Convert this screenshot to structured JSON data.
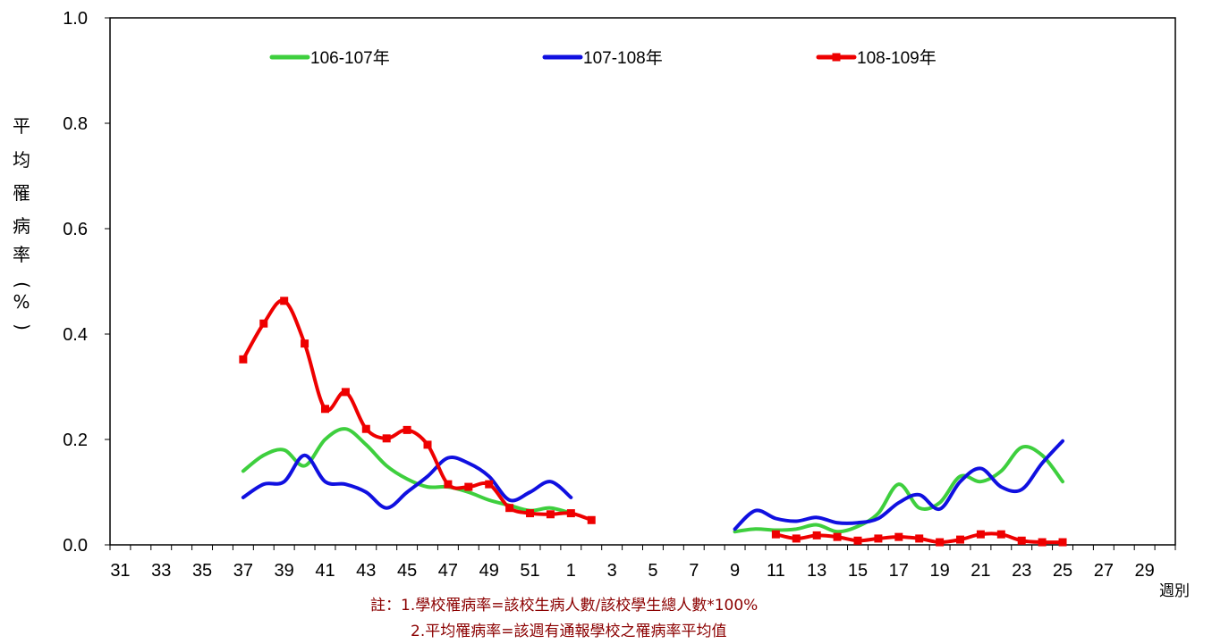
{
  "chart_data": {
    "type": "line",
    "title": "",
    "ylabel": "平均罹病率(%)",
    "xlabel": "週別",
    "ylim": [
      0,
      1.0
    ],
    "yticks": [
      "0.0",
      "0.2",
      "0.4",
      "0.6",
      "0.8",
      "1.0"
    ],
    "x_weeks": [
      31,
      32,
      33,
      34,
      35,
      36,
      37,
      38,
      39,
      40,
      41,
      42,
      43,
      44,
      45,
      46,
      47,
      48,
      49,
      50,
      51,
      52,
      1,
      2,
      3,
      4,
      5,
      6,
      7,
      8,
      9,
      10,
      11,
      12,
      13,
      14,
      15,
      16,
      17,
      18,
      19,
      20,
      21,
      22,
      23,
      24,
      25,
      26,
      27,
      28,
      29,
      30
    ],
    "x_tick_labels": [
      "31",
      "33",
      "35",
      "37",
      "39",
      "41",
      "43",
      "45",
      "47",
      "49",
      "51",
      "1",
      "3",
      "5",
      "7",
      "9",
      "11",
      "13",
      "15",
      "17",
      "19",
      "21",
      "23",
      "25",
      "27",
      "29"
    ],
    "grid": false,
    "legend_position": "top",
    "series": [
      {
        "name": "106-107年",
        "color": "#3ecf3e",
        "marker": "none",
        "segments": [
          [
            [
              37,
              0.14
            ],
            [
              38,
              0.17
            ],
            [
              39,
              0.18
            ],
            [
              40,
              0.15
            ],
            [
              41,
              0.2
            ],
            [
              42,
              0.22
            ],
            [
              43,
              0.19
            ],
            [
              44,
              0.15
            ],
            [
              45,
              0.125
            ],
            [
              46,
              0.11
            ],
            [
              47,
              0.11
            ],
            [
              48,
              0.1
            ],
            [
              49,
              0.085
            ],
            [
              50,
              0.075
            ],
            [
              51,
              0.065
            ],
            [
              52,
              0.07
            ],
            [
              1,
              0.06
            ]
          ],
          [
            [
              9,
              0.025
            ],
            [
              10,
              0.03
            ],
            [
              11,
              0.028
            ],
            [
              12,
              0.03
            ],
            [
              13,
              0.038
            ],
            [
              14,
              0.025
            ],
            [
              15,
              0.035
            ],
            [
              16,
              0.06
            ],
            [
              17,
              0.115
            ],
            [
              18,
              0.07
            ],
            [
              19,
              0.08
            ],
            [
              20,
              0.13
            ],
            [
              21,
              0.12
            ],
            [
              22,
              0.14
            ],
            [
              23,
              0.185
            ],
            [
              24,
              0.17
            ],
            [
              25,
              0.12
            ]
          ]
        ]
      },
      {
        "name": "107-108年",
        "color": "#1010e0",
        "marker": "none",
        "segments": [
          [
            [
              37,
              0.09
            ],
            [
              38,
              0.115
            ],
            [
              39,
              0.12
            ],
            [
              40,
              0.17
            ],
            [
              41,
              0.12
            ],
            [
              42,
              0.115
            ],
            [
              43,
              0.1
            ],
            [
              44,
              0.07
            ],
            [
              45,
              0.1
            ],
            [
              46,
              0.13
            ],
            [
              47,
              0.165
            ],
            [
              48,
              0.155
            ],
            [
              49,
              0.13
            ],
            [
              50,
              0.085
            ],
            [
              51,
              0.1
            ],
            [
              52,
              0.12
            ],
            [
              1,
              0.09
            ]
          ],
          [
            [
              9,
              0.03
            ],
            [
              10,
              0.065
            ],
            [
              11,
              0.05
            ],
            [
              12,
              0.045
            ],
            [
              13,
              0.052
            ],
            [
              14,
              0.042
            ],
            [
              15,
              0.042
            ],
            [
              16,
              0.05
            ],
            [
              17,
              0.08
            ],
            [
              18,
              0.095
            ],
            [
              19,
              0.068
            ],
            [
              20,
              0.12
            ],
            [
              21,
              0.145
            ],
            [
              22,
              0.11
            ],
            [
              23,
              0.105
            ],
            [
              24,
              0.155
            ],
            [
              25,
              0.197
            ]
          ]
        ]
      },
      {
        "name": "108-109年",
        "color": "#ee0000",
        "marker": "square",
        "segments": [
          [
            [
              37,
              0.352
            ],
            [
              38,
              0.42
            ],
            [
              39,
              0.463
            ],
            [
              40,
              0.382
            ],
            [
              41,
              0.258
            ],
            [
              42,
              0.29
            ],
            [
              43,
              0.22
            ],
            [
              44,
              0.202
            ],
            [
              45,
              0.218
            ],
            [
              46,
              0.19
            ],
            [
              47,
              0.115
            ],
            [
              48,
              0.11
            ],
            [
              49,
              0.115
            ],
            [
              50,
              0.07
            ],
            [
              51,
              0.06
            ],
            [
              52,
              0.058
            ],
            [
              1,
              0.06
            ],
            [
              2,
              0.047
            ]
          ],
          [
            [
              11,
              0.02
            ],
            [
              12,
              0.012
            ],
            [
              13,
              0.018
            ],
            [
              14,
              0.015
            ],
            [
              15,
              0.008
            ],
            [
              16,
              0.012
            ],
            [
              17,
              0.015
            ],
            [
              18,
              0.012
            ],
            [
              19,
              0.005
            ],
            [
              20,
              0.01
            ],
            [
              21,
              0.02
            ],
            [
              22,
              0.02
            ],
            [
              23,
              0.008
            ],
            [
              24,
              0.005
            ],
            [
              25,
              0.005
            ]
          ]
        ]
      }
    ]
  },
  "notes": {
    "line1": "註：1.學校罹病率=該校生病人數/該校學生總人數*100%",
    "line2": "2.平均罹病率=該週有通報學校之罹病率平均值"
  }
}
